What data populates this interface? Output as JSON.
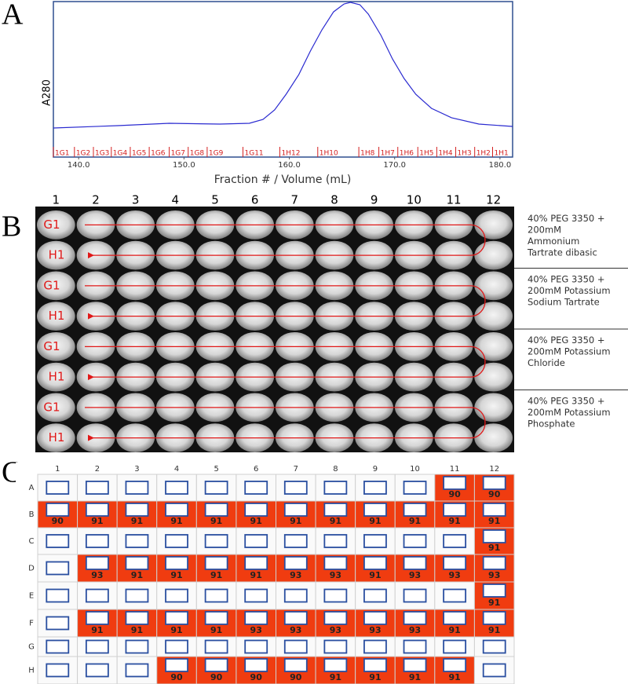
{
  "panels": [
    "A",
    "B",
    "C"
  ],
  "chart_data": {
    "type": "line",
    "y_label": "A280",
    "x_label": "Fraction # / Volume (mL)",
    "xlim": [
      137.6,
      181.2
    ],
    "ylim": [
      0,
      100
    ],
    "xticks": [
      {
        "value": 140,
        "label": "140.0"
      },
      {
        "value": 150,
        "label": "150.0"
      },
      {
        "value": 160,
        "label": "160.0"
      },
      {
        "value": 170,
        "label": "170.0"
      },
      {
        "value": 180,
        "label": "180.0"
      }
    ],
    "x": [
      137.6,
      143.7,
      148.6,
      153.4,
      156.2,
      157.5,
      158.6,
      159.7,
      160.9,
      162.0,
      163.1,
      164.2,
      165.2,
      165.8,
      166.7,
      167.5,
      168.7,
      169.8,
      170.9,
      172.0,
      173.5,
      175.4,
      178.0,
      181.2
    ],
    "values": [
      18.7,
      20.2,
      21.7,
      21.2,
      21.7,
      24.2,
      30.3,
      40.4,
      53.0,
      68.2,
      81.8,
      93.4,
      98.5,
      99.5,
      98.0,
      91.9,
      78.3,
      63.1,
      50.5,
      40.4,
      31.3,
      25.3,
      21.2,
      19.7
    ],
    "color": "#2a2ad0",
    "fractions": {
      "color": "#d42020",
      "labels": [
        "1G1",
        "1G2",
        "1G3",
        "1G4",
        "1G5",
        "1G6",
        "1G7",
        "1G8",
        "1G9",
        "1G11",
        "1H12",
        "1H10",
        "1H8",
        "1H7",
        "1H6",
        "1H5",
        "1H4",
        "1H3",
        "1H2",
        "1H1"
      ],
      "x": [
        137.6,
        139.6,
        141.4,
        143.1,
        144.9,
        146.7,
        148.6,
        150.4,
        152.2,
        155.6,
        159.1,
        162.7,
        166.6,
        168.5,
        170.3,
        172.2,
        174.0,
        175.8,
        177.6,
        179.3
      ]
    }
  },
  "plate_images": {
    "columns": [
      1,
      2,
      3,
      4,
      5,
      6,
      7,
      8,
      9,
      10,
      11,
      12
    ],
    "row_labels": [
      "G1",
      "H1"
    ],
    "conditions": [
      [
        "40% PEG 3350 +",
        "200mM",
        "Ammonium",
        "Tartrate dibasic"
      ],
      [
        "40% PEG 3350 +",
        "200mM Potassium",
        "Sodium Tartrate"
      ],
      [
        "40% PEG 3350 +",
        "200mM Potassium",
        "Chloride"
      ],
      [
        "40% PEG 3350 +",
        "200mM Potassium",
        "Phosphate"
      ]
    ]
  },
  "plate": {
    "hit_color": "#f03c10",
    "columns": [
      1,
      2,
      3,
      4,
      5,
      6,
      7,
      8,
      9,
      10,
      11,
      12
    ],
    "rows": [
      {
        "label": "A",
        "cells": [
          null,
          null,
          null,
          null,
          null,
          null,
          null,
          null,
          null,
          null,
          90,
          90
        ]
      },
      {
        "label": "B",
        "cells": [
          90,
          91,
          91,
          91,
          91,
          91,
          91,
          91,
          91,
          91,
          91,
          91
        ]
      },
      {
        "label": "C",
        "cells": [
          null,
          null,
          null,
          null,
          null,
          null,
          null,
          null,
          null,
          null,
          null,
          91
        ]
      },
      {
        "label": "D",
        "cells": [
          null,
          93,
          91,
          91,
          91,
          91,
          93,
          93,
          91,
          93,
          93,
          93
        ]
      },
      {
        "label": "E",
        "cells": [
          null,
          null,
          null,
          null,
          null,
          null,
          null,
          null,
          null,
          null,
          null,
          91
        ]
      },
      {
        "label": "F",
        "cells": [
          null,
          91,
          91,
          91,
          91,
          93,
          93,
          93,
          93,
          93,
          91,
          91
        ]
      },
      {
        "label": "G",
        "cells": [
          null,
          null,
          null,
          null,
          null,
          null,
          null,
          null,
          null,
          null,
          null,
          null
        ]
      },
      {
        "label": "H",
        "cells": [
          null,
          null,
          null,
          90,
          90,
          90,
          90,
          91,
          91,
          91,
          91,
          null
        ]
      }
    ]
  }
}
